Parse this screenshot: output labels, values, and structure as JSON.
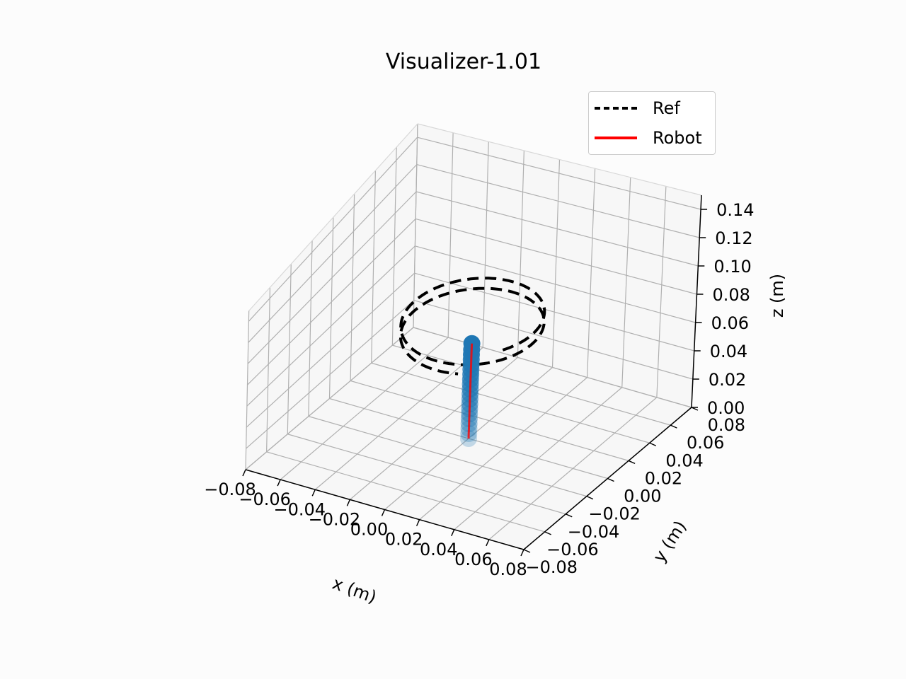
{
  "chart_data": {
    "type": "line",
    "title": "Visualizer-1.01",
    "xlabel": "x (m)",
    "ylabel": "y (m)",
    "zlabel": "z (m)",
    "xlim": [
      -0.08,
      0.08
    ],
    "ylim": [
      -0.08,
      0.08
    ],
    "zlim": [
      0.0,
      0.15
    ],
    "x_ticks": [
      "−0.08",
      "−0.06",
      "−0.04",
      "−0.02",
      "0.00",
      "0.02",
      "0.04",
      "0.06",
      "0.08"
    ],
    "y_ticks": [
      "−0.08",
      "−0.06",
      "−0.04",
      "−0.02",
      "0.00",
      "0.02",
      "0.04",
      "0.06",
      "0.08"
    ],
    "z_ticks": [
      "0.00",
      "0.02",
      "0.04",
      "0.06",
      "0.08",
      "0.10",
      "0.12",
      "0.14"
    ],
    "grid": true,
    "legend_position": "top-right",
    "series": [
      {
        "name": "Ref",
        "style": "dashed",
        "color": "#000000",
        "shape": "helix",
        "center_x": 0.0,
        "center_y": 0.0,
        "radius": 0.035,
        "z_start": 0.1,
        "z_end": 0.085,
        "turns": 1.9
      },
      {
        "name": "Robot",
        "style": "solid",
        "color": "#ff0000",
        "x": [
          0,
          0,
          0,
          0,
          0,
          0,
          0,
          0,
          0,
          0,
          0,
          0,
          0,
          0,
          0,
          0,
          0,
          0,
          0,
          0
        ],
        "y": [
          0,
          0,
          0,
          0,
          0,
          0,
          0,
          0,
          0,
          0,
          0,
          0,
          0,
          0,
          0,
          0,
          0,
          0,
          0,
          0
        ],
        "z": [
          0.0,
          0.004,
          0.008,
          0.012,
          0.016,
          0.02,
          0.024,
          0.028,
          0.032,
          0.036,
          0.04,
          0.044,
          0.048,
          0.052,
          0.056,
          0.06,
          0.064,
          0.068,
          0.072,
          0.077
        ]
      }
    ],
    "markers": {
      "color": "#1f77b4",
      "x": 0.0,
      "y": 0.0,
      "z": [
        0.0,
        0.004,
        0.008,
        0.012,
        0.016,
        0.02,
        0.024,
        0.028,
        0.032,
        0.036,
        0.04,
        0.044,
        0.048,
        0.052,
        0.056,
        0.06,
        0.064,
        0.068,
        0.072,
        0.077
      ]
    }
  }
}
